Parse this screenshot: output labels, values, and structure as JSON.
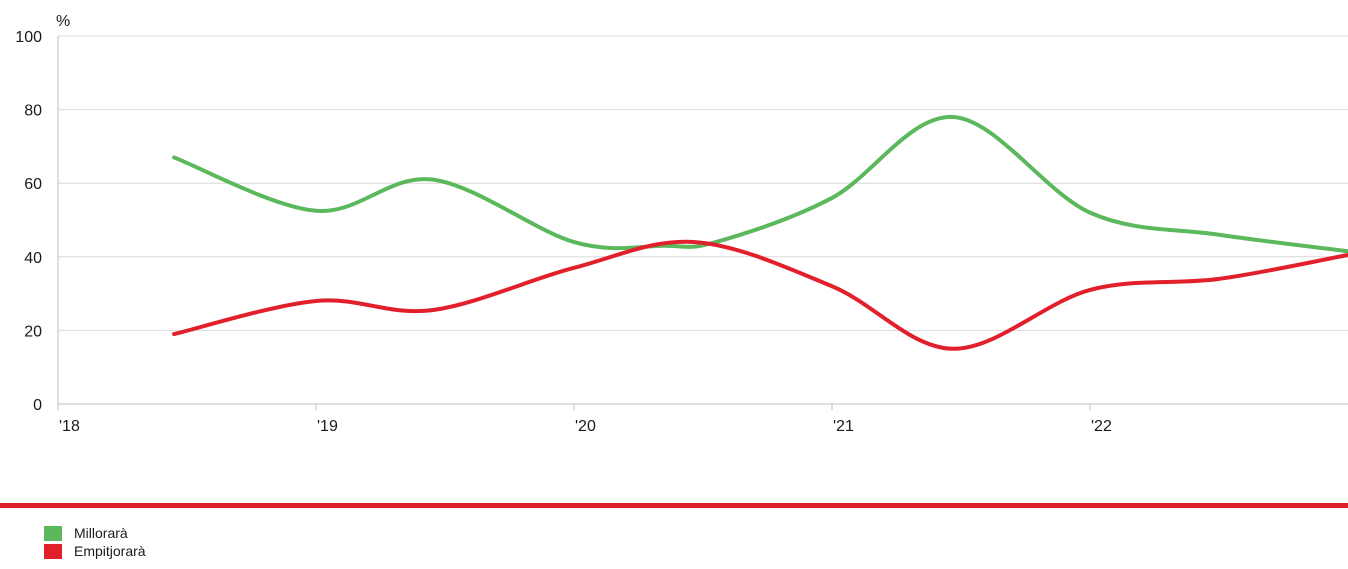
{
  "chart_data": {
    "type": "line",
    "unit_label": "%",
    "ylim": [
      0,
      100
    ],
    "y_ticks": [
      0,
      20,
      40,
      60,
      80,
      100
    ],
    "xlim": [
      2018,
      2023
    ],
    "x_ticks": [
      {
        "value": 2018,
        "label": "'18"
      },
      {
        "value": 2019,
        "label": "'19"
      },
      {
        "value": 2020,
        "label": "'20"
      },
      {
        "value": 2021,
        "label": "'21"
      },
      {
        "value": 2022,
        "label": "'22"
      }
    ],
    "grid": true,
    "legend_position": "bottom-left",
    "series": [
      {
        "name": "Millorarà",
        "color": "#5cb85c",
        "points": [
          {
            "x": 2018.45,
            "y": 67
          },
          {
            "x": 2019.0,
            "y": 52.5
          },
          {
            "x": 2019.45,
            "y": 61
          },
          {
            "x": 2020.0,
            "y": 44
          },
          {
            "x": 2020.35,
            "y": 43
          },
          {
            "x": 2020.55,
            "y": 44
          },
          {
            "x": 2021.0,
            "y": 56
          },
          {
            "x": 2021.47,
            "y": 78
          },
          {
            "x": 2022.0,
            "y": 52
          },
          {
            "x": 2022.5,
            "y": 46
          },
          {
            "x": 2023.0,
            "y": 41.5
          }
        ]
      },
      {
        "name": "Empitjorarà",
        "color": "#e2202c",
        "points": [
          {
            "x": 2018.45,
            "y": 19
          },
          {
            "x": 2019.0,
            "y": 28
          },
          {
            "x": 2019.45,
            "y": 25.5
          },
          {
            "x": 2020.0,
            "y": 37
          },
          {
            "x": 2020.47,
            "y": 44
          },
          {
            "x": 2021.0,
            "y": 32
          },
          {
            "x": 2021.47,
            "y": 15
          },
          {
            "x": 2022.0,
            "y": 31
          },
          {
            "x": 2022.5,
            "y": 34
          },
          {
            "x": 2023.0,
            "y": 40.5
          }
        ]
      }
    ]
  },
  "divider_color": "#e2202c",
  "legend": {
    "items": [
      {
        "label": "Millorarà",
        "color": "#5cb85c"
      },
      {
        "label": "Empitjorarà",
        "color": "#e2202c"
      }
    ]
  }
}
